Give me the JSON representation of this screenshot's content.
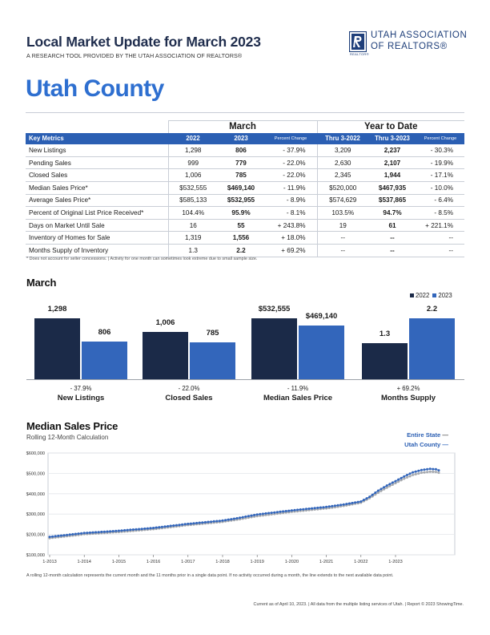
{
  "header": {
    "title": "Local Market Update for March 2023",
    "subtitle": "A RESEARCH TOOL PROVIDED BY THE UTAH ASSOCIATION OF REALTORS®",
    "logo_line1": "UTAH ASSOCIATION",
    "logo_line2": "OF REALTORS®",
    "logo_tag": "REALTOR®"
  },
  "county": "Utah County",
  "table": {
    "group_march": "March",
    "group_ytd": "Year to Date",
    "headers": {
      "key_metrics": "Key Metrics",
      "m_2022": "2022",
      "m_2023": "2023",
      "pct_change": "Percent Change",
      "ytd_2022": "Thru 3-2022",
      "ytd_2023": "Thru 3-2023",
      "ytd_pct": "Percent Change"
    },
    "rows": [
      {
        "metric": "New Listings",
        "m2022": "1,298",
        "m2023": "806",
        "mpct": "- 37.9%",
        "y2022": "3,209",
        "y2023": "2,237",
        "ypct": "- 30.3%"
      },
      {
        "metric": "Pending Sales",
        "m2022": "999",
        "m2023": "779",
        "mpct": "- 22.0%",
        "y2022": "2,630",
        "y2023": "2,107",
        "ypct": "- 19.9%"
      },
      {
        "metric": "Closed Sales",
        "m2022": "1,006",
        "m2023": "785",
        "mpct": "- 22.0%",
        "y2022": "2,345",
        "y2023": "1,944",
        "ypct": "- 17.1%"
      },
      {
        "metric": "Median Sales Price*",
        "m2022": "$532,555",
        "m2023": "$469,140",
        "mpct": "- 11.9%",
        "y2022": "$520,000",
        "y2023": "$467,935",
        "ypct": "- 10.0%"
      },
      {
        "metric": "Average Sales Price*",
        "m2022": "$585,133",
        "m2023": "$532,955",
        "mpct": "- 8.9%",
        "y2022": "$574,629",
        "y2023": "$537,865",
        "ypct": "- 6.4%"
      },
      {
        "metric": "Percent of Original List Price Received*",
        "m2022": "104.4%",
        "m2023": "95.9%",
        "mpct": "- 8.1%",
        "y2022": "103.5%",
        "y2023": "94.7%",
        "ypct": "- 8.5%"
      },
      {
        "metric": "Days on Market Until Sale",
        "m2022": "16",
        "m2023": "55",
        "mpct": "+ 243.8%",
        "y2022": "19",
        "y2023": "61",
        "ypct": "+ 221.1%"
      },
      {
        "metric": "Inventory of Homes for Sale",
        "m2022": "1,319",
        "m2023": "1,556",
        "mpct": "+ 18.0%",
        "y2022": "--",
        "y2023": "--",
        "ypct": "--"
      },
      {
        "metric": "Months Supply of Inventory",
        "m2022": "1.3",
        "m2023": "2.2",
        "mpct": "+ 69.2%",
        "y2022": "--",
        "y2023": "--",
        "ypct": "--"
      }
    ],
    "footnote": "* Does not account for seller concessions.  |  Activity for one month can sometimes look extreme due to small sample size."
  },
  "chart_data": [
    {
      "type": "bar",
      "title": "March",
      "legend": [
        "2022",
        "2023"
      ],
      "legend_position": "top-right",
      "colors": {
        "2022": "#1b2a48",
        "2023": "#3366bb"
      },
      "groups": [
        {
          "category": "New Listings",
          "pct": "- 37.9%",
          "v2022": 1298,
          "v2023": 806,
          "l2022": "1,298",
          "l2023": "806",
          "scale": 1298
        },
        {
          "category": "Closed Sales",
          "pct": "- 22.0%",
          "v2022": 1006,
          "v2023": 785,
          "l2022": "1,006",
          "l2023": "785",
          "scale": 1298
        },
        {
          "category": "Median Sales Price",
          "pct": "- 11.9%",
          "v2022": 532555,
          "v2023": 469140,
          "l2022": "$532,555",
          "l2023": "$469,140",
          "scale": 532555
        },
        {
          "category": "Months Supply",
          "pct": "+ 69.2%",
          "v2022": 1.3,
          "v2023": 2.2,
          "l2022": "1.3",
          "l2023": "2.2",
          "scale": 2.2
        }
      ]
    },
    {
      "type": "line",
      "title": "Median Sales Price",
      "subtitle": "Rolling 12-Month Calculation",
      "legend": [
        "Entire State",
        "Utah County"
      ],
      "legend_position": "top-right",
      "colors": {
        "Entire State": "#a6a9ae",
        "Utah County": "#3366bb"
      },
      "ylim": [
        100000,
        600000
      ],
      "yticks": [
        "$100,000",
        "$200,000",
        "$300,000",
        "$400,000",
        "$500,000",
        "$600,000"
      ],
      "ytick_values": [
        100000,
        200000,
        300000,
        400000,
        500000,
        600000
      ],
      "xticks": [
        "1-2013",
        "1-2014",
        "1-2015",
        "1-2016",
        "1-2017",
        "1-2018",
        "1-2019",
        "1-2020",
        "1-2021",
        "1-2022",
        "1-2023"
      ],
      "x_start": "1-2013",
      "x_end": "3-2023",
      "series": [
        {
          "name": "Utah County",
          "anchors": [
            [
              0,
              188000
            ],
            [
              12,
              207000
            ],
            [
              24,
              218000
            ],
            [
              36,
              232000
            ],
            [
              48,
              252000
            ],
            [
              60,
              268000
            ],
            [
              66,
              282000
            ],
            [
              72,
              298000
            ],
            [
              84,
              318000
            ],
            [
              96,
              335000
            ],
            [
              102,
              347000
            ],
            [
              108,
              362000
            ],
            [
              111,
              385000
            ],
            [
              114,
              415000
            ],
            [
              117,
              440000
            ],
            [
              120,
              462000
            ],
            [
              123,
              485000
            ],
            [
              126,
              505000
            ],
            [
              129,
              516000
            ],
            [
              132,
              522000
            ],
            [
              134,
              520000
            ],
            [
              135,
              515000
            ]
          ]
        },
        {
          "name": "Entire State",
          "anchors": [
            [
              0,
              182000
            ],
            [
              12,
              201000
            ],
            [
              24,
              212000
            ],
            [
              36,
              226000
            ],
            [
              48,
              246000
            ],
            [
              60,
              262000
            ],
            [
              66,
              275000
            ],
            [
              72,
              290000
            ],
            [
              84,
              311000
            ],
            [
              96,
              328000
            ],
            [
              102,
              340000
            ],
            [
              108,
              356000
            ],
            [
              111,
              378000
            ],
            [
              114,
              405000
            ],
            [
              117,
              430000
            ],
            [
              120,
              452000
            ],
            [
              123,
              474000
            ],
            [
              126,
              492000
            ],
            [
              129,
              503000
            ],
            [
              132,
              508000
            ],
            [
              134,
              507000
            ],
            [
              135,
              503000
            ]
          ]
        }
      ]
    }
  ],
  "line_footnote": "A rolling 12-month calculation represents the current month and the 11 months prior in a single data point. If no activity occurred during a month, the line extends to the next available data point.",
  "footer": "Current as of April 10, 2023.  |  All data from the multiple listing services of Utah.  |  Report © 2023 ShowingTime."
}
